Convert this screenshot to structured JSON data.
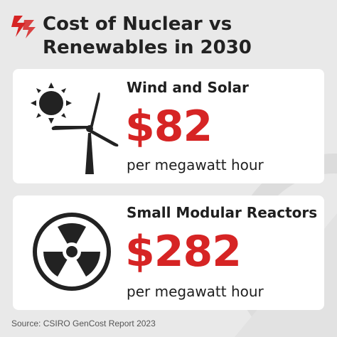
{
  "brand": {
    "logo_icon": "sbs-logo-icon",
    "logo_color": "#d62424"
  },
  "title": "Cost of Nuclear vs Renewables in 2030",
  "cards": [
    {
      "icon": "sun-and-wind-turbine-icon",
      "heading": "Wind and Solar",
      "price": "$82",
      "unit": "per megawatt hour"
    },
    {
      "icon": "radiation-symbol-icon",
      "heading": "Small Modular Reactors",
      "price": "$282",
      "unit": "per megawatt hour"
    }
  ],
  "source": "Source: CSIRO GenCost Report 2023",
  "colors": {
    "accent": "#d62424",
    "background": "#e9e9e9",
    "card": "#ffffff",
    "text": "#1f1f1f"
  }
}
